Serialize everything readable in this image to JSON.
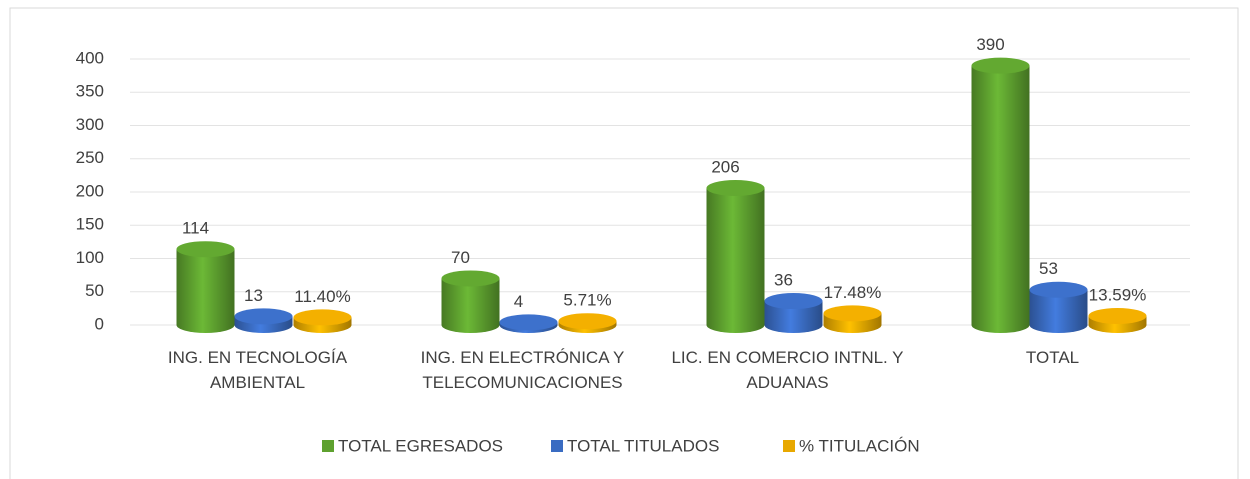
{
  "chart_data": {
    "type": "bar3d",
    "categories": [
      "ING. EN TECNOLOGÍA AMBIENTAL",
      "ING. EN ELECTRÓNICA Y TELECOMUNICACIONES",
      "LIC. EN COMERCIO INTNL. Y ADUANAS",
      "TOTAL"
    ],
    "series": [
      {
        "name": "TOTAL EGRESADOS",
        "color": "#5ea12f",
        "values": [
          114,
          70,
          206,
          390
        ]
      },
      {
        "name": "TOTAL TITULADOS",
        "color": "#3a6cc2",
        "values": [
          13,
          4,
          36,
          53
        ]
      },
      {
        "name": "% TITULACIÓN",
        "color": "#e8a800",
        "values": [
          11.4,
          5.71,
          17.48,
          13.59
        ],
        "value_labels": [
          "11.40%",
          "5.71%",
          "17.48%",
          "13.59%"
        ]
      }
    ],
    "ylim": [
      0,
      400
    ],
    "yticks": [
      0,
      50,
      100,
      150,
      200,
      250,
      300,
      350,
      400
    ],
    "grid": true,
    "legend": "bottom"
  }
}
